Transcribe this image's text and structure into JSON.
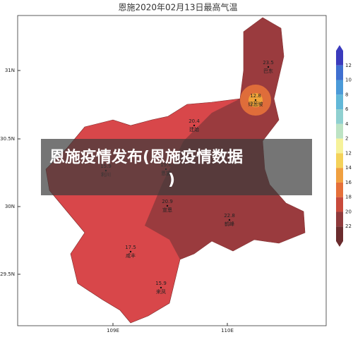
{
  "title": "恩施2020年02月13日最高气温",
  "lat_labels": [
    "31N",
    "30.5N",
    "30N",
    "29.5N"
  ],
  "lon_labels": [
    "109E",
    "110E"
  ],
  "colorbar": [
    "12",
    "10",
    "8",
    "6",
    "4",
    "2",
    "12",
    "14",
    "16",
    "18",
    "20",
    "22"
  ],
  "cities": [
    {
      "name": "巴东",
      "value": 23.5
    },
    {
      "name": "绿葱坡",
      "value": 12.8
    },
    {
      "name": "建始",
      "value": 20.4
    },
    {
      "name": "利川",
      "value": 15.9
    },
    {
      "name": "恩施",
      "value": 19.6
    },
    {
      "name": "宣恩",
      "value": 20.9
    },
    {
      "name": "鹤峰",
      "value": 22.8
    },
    {
      "name": "咸丰",
      "value": 17.5
    },
    {
      "name": "来凤",
      "value": 15.9
    }
  ],
  "overlay": {
    "line1": "恩施疫情发布(恩施疫情数据",
    "line2": ")"
  }
}
